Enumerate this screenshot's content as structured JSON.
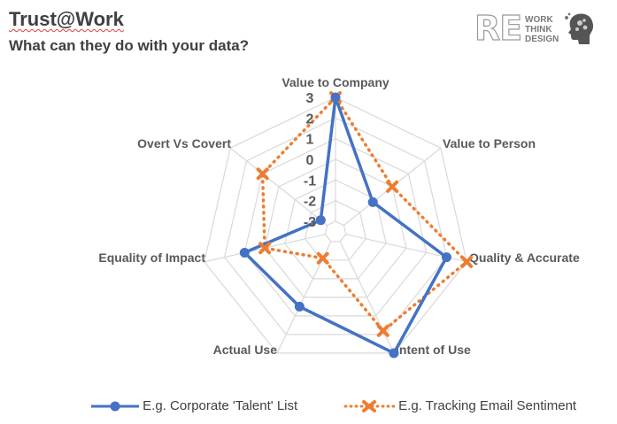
{
  "header": {
    "title": "Trust@Work",
    "subtitle": "What can they do with your data?"
  },
  "logo": {
    "mark": "RE",
    "lines": [
      "WORK",
      "THINK",
      "DESIGN"
    ]
  },
  "colors": {
    "series1": "#4472c4",
    "series2": "#ed7d31",
    "grid": "#d9d9d9",
    "label": "#595959"
  },
  "chart_data": {
    "type": "radar",
    "categories": [
      "Value to Company",
      "Value to Person",
      "Quality & Accurate",
      "Intent of Use",
      "Actual Use",
      "Equality of Impact",
      "Overt Vs Covert"
    ],
    "rlim": [
      -3,
      3
    ],
    "ticks": [
      "3",
      "2",
      "1",
      "0",
      "-1",
      "-2",
      "-3"
    ],
    "grid": true,
    "legend_position": "bottom",
    "series": [
      {
        "name": "E.g. Corporate 'Talent' List",
        "values": [
          3,
          -1.2,
          2,
          3,
          0.5,
          1,
          -2.6
        ],
        "style": "solid"
      },
      {
        "name": "E.g. Tracking Email Sentiment",
        "values": [
          3,
          0,
          3,
          1.8,
          -2.1,
          0,
          1
        ],
        "style": "dotted"
      }
    ]
  }
}
